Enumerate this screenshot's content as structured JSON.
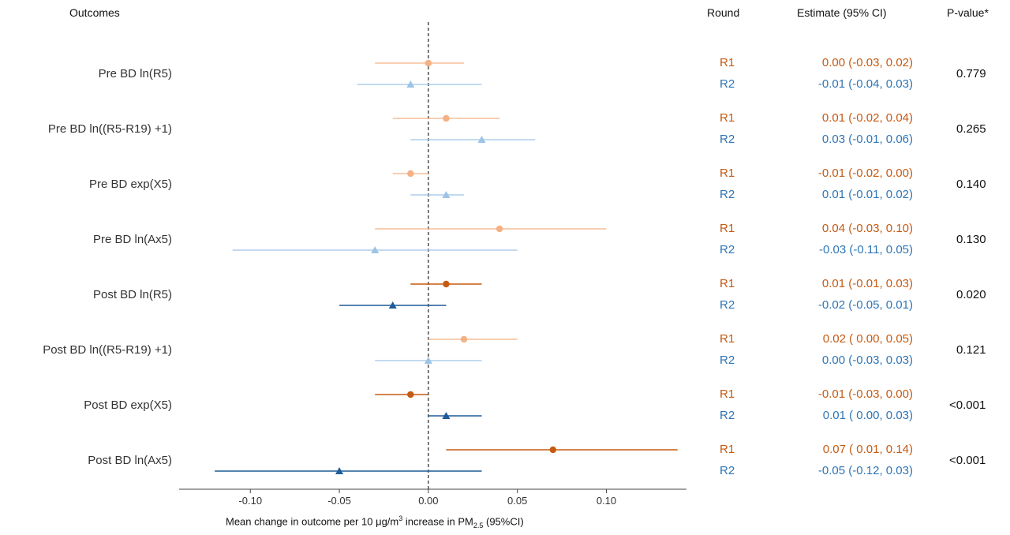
{
  "headers": {
    "outcomes": "Outcomes",
    "round": "Round",
    "estimate": "Estimate (95% CI)",
    "pvalue": "P-value*"
  },
  "colors": {
    "r1_dark": "#c55a11",
    "r1_light": "#f4b183",
    "r2_dark": "#1f5c99",
    "r2_light": "#9dc3e6",
    "r1_text": "#c55a11",
    "r2_text": "#2e75b6"
  },
  "chart_data": {
    "type": "forest",
    "xlabel": "Mean change in outcome per 10 μg/m³ increase in PM2.5 (95%CI)",
    "xlabel_main": "Mean change in outcome per 10 ",
    "xlabel_unit": "μg/m",
    "xlabel_sup": "3",
    "xlabel_mid": " increase in  PM",
    "xlabel_sub": "2.5",
    "xlabel_tail": " (95%CI)",
    "xlim": [
      -0.14,
      0.145
    ],
    "xticks": [
      -0.1,
      -0.05,
      0.0,
      0.05,
      0.1
    ],
    "xtick_labels": [
      "-0.10",
      "-0.05",
      "0.00",
      "0.05",
      "0.10"
    ],
    "outcomes": [
      {
        "name": "Pre BD ln(R5)",
        "pvalue": "0.779",
        "significant": false,
        "rows": [
          {
            "round": "R1",
            "est": 0.0,
            "lo": -0.03,
            "hi": 0.02,
            "label": "0.00 (-0.03, 0.02)"
          },
          {
            "round": "R2",
            "est": -0.01,
            "lo": -0.04,
            "hi": 0.03,
            "label": "-0.01 (-0.04, 0.03)"
          }
        ]
      },
      {
        "name": "Pre BD ln((R5-R19) +1)",
        "pvalue": "0.265",
        "significant": false,
        "rows": [
          {
            "round": "R1",
            "est": 0.01,
            "lo": -0.02,
            "hi": 0.04,
            "label": "0.01 (-0.02, 0.04)"
          },
          {
            "round": "R2",
            "est": 0.03,
            "lo": -0.01,
            "hi": 0.06,
            "label": "0.03 (-0.01, 0.06)"
          }
        ]
      },
      {
        "name": "Pre BD exp(X5)",
        "pvalue": "0.140",
        "significant": false,
        "rows": [
          {
            "round": "R1",
            "est": -0.01,
            "lo": -0.02,
            "hi": 0.0,
            "label": "-0.01 (-0.02, 0.00)"
          },
          {
            "round": "R2",
            "est": 0.01,
            "lo": -0.01,
            "hi": 0.02,
            "label": "0.01 (-0.01, 0.02)"
          }
        ]
      },
      {
        "name": "Pre BD ln(Ax5)",
        "pvalue": "0.130",
        "significant": false,
        "rows": [
          {
            "round": "R1",
            "est": 0.04,
            "lo": -0.03,
            "hi": 0.1,
            "label": "0.04 (-0.03, 0.10)"
          },
          {
            "round": "R2",
            "est": -0.03,
            "lo": -0.11,
            "hi": 0.05,
            "label": "-0.03 (-0.11, 0.05)"
          }
        ]
      },
      {
        "name": "Post BD ln(R5)",
        "pvalue": "0.020",
        "significant": true,
        "rows": [
          {
            "round": "R1",
            "est": 0.01,
            "lo": -0.01,
            "hi": 0.03,
            "label": "0.01 (-0.01, 0.03)"
          },
          {
            "round": "R2",
            "est": -0.02,
            "lo": -0.05,
            "hi": 0.01,
            "label": "-0.02 (-0.05, 0.01)"
          }
        ]
      },
      {
        "name": "Post BD ln((R5-R19) +1)",
        "pvalue": "0.121",
        "significant": false,
        "rows": [
          {
            "round": "R1",
            "est": 0.02,
            "lo": 0.0,
            "hi": 0.05,
            "label": "0.02 ( 0.00, 0.05)"
          },
          {
            "round": "R2",
            "est": 0.0,
            "lo": -0.03,
            "hi": 0.03,
            "label": "0.00 (-0.03, 0.03)"
          }
        ]
      },
      {
        "name": "Post BD exp(X5)",
        "pvalue": "<0.001",
        "significant": true,
        "rows": [
          {
            "round": "R1",
            "est": -0.01,
            "lo": -0.03,
            "hi": 0.0,
            "label": "-0.01 (-0.03, 0.00)"
          },
          {
            "round": "R2",
            "est": 0.01,
            "lo": 0.0,
            "hi": 0.03,
            "label": "0.01 ( 0.00, 0.03)"
          }
        ]
      },
      {
        "name": "Post BD ln(Ax5)",
        "pvalue": "<0.001",
        "significant": true,
        "rows": [
          {
            "round": "R1",
            "est": 0.07,
            "lo": 0.01,
            "hi": 0.14,
            "label": "0.07 ( 0.01, 0.14)"
          },
          {
            "round": "R2",
            "est": -0.05,
            "lo": -0.12,
            "hi": 0.03,
            "label": "-0.05 (-0.12, 0.03)"
          }
        ]
      }
    ]
  }
}
